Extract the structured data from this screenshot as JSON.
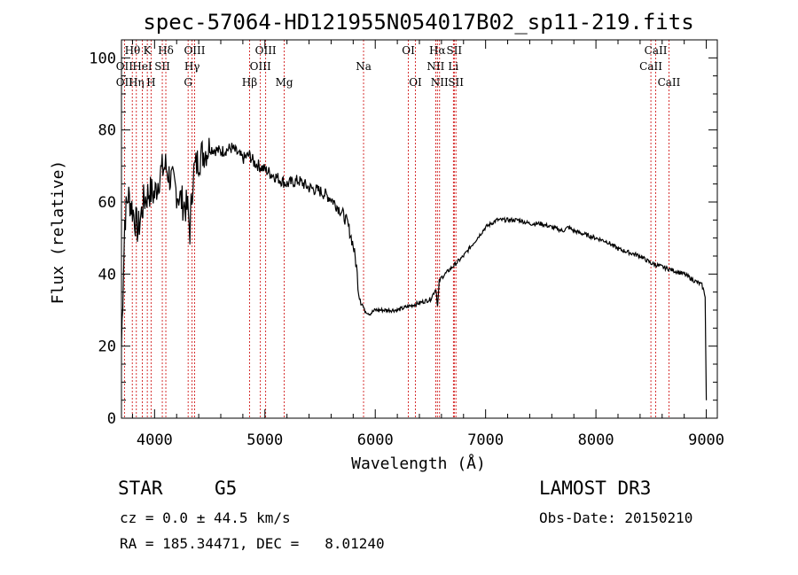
{
  "chart_data": {
    "type": "line",
    "title": "spec-57064-HD121955N054017B02_sp11-219.fits",
    "xlabel": "Wavelength (Å)",
    "ylabel": "Flux (relative)",
    "xlim": [
      3700,
      9100
    ],
    "ylim": [
      0,
      105
    ],
    "xticks": [
      4000,
      5000,
      6000,
      7000,
      8000,
      9000
    ],
    "xtick_labels": [
      "4000",
      "5000",
      "6000",
      "7000",
      "8000",
      "9000"
    ],
    "yticks": [
      0,
      20,
      40,
      60,
      80,
      100
    ],
    "ytick_labels": [
      "0",
      "20",
      "40",
      "60",
      "80",
      "100"
    ],
    "series": [
      {
        "name": "flux",
        "x": [
          3700,
          3730,
          3760,
          3800,
          3850,
          3900,
          3950,
          4000,
          4050,
          4100,
          4150,
          4200,
          4250,
          4300,
          4320,
          4350,
          4400,
          4450,
          4500,
          4600,
          4700,
          4800,
          4860,
          4900,
          5000,
          5100,
          5200,
          5300,
          5400,
          5500,
          5600,
          5700,
          5750,
          5800,
          5830,
          5850,
          5870,
          5890,
          5900,
          5950,
          6000,
          6100,
          6200,
          6300,
          6400,
          6500,
          6550,
          6565,
          6580,
          6600,
          6700,
          6800,
          6900,
          7000,
          7100,
          7200,
          7300,
          7400,
          7500,
          7600,
          7700,
          7750,
          7800,
          7900,
          8000,
          8100,
          8200,
          8300,
          8400,
          8500,
          8600,
          8700,
          8800,
          8900,
          8960,
          8990,
          9000
        ],
        "values": [
          20,
          55,
          62,
          58,
          52,
          60,
          63,
          62,
          68,
          70,
          66,
          63,
          60,
          58,
          52,
          68,
          72,
          74,
          75,
          74,
          75,
          72,
          73,
          71,
          69,
          67,
          65,
          66,
          64,
          63,
          61,
          57,
          54,
          48,
          42,
          35,
          33,
          31,
          30,
          29,
          30,
          30,
          30,
          31,
          32,
          33,
          36,
          31,
          38,
          39,
          42,
          45,
          49,
          53,
          55,
          55,
          55,
          54,
          54,
          53,
          52,
          53,
          52,
          51,
          50,
          49,
          47,
          46,
          45,
          43,
          42,
          41,
          40,
          38,
          37,
          34,
          5
        ]
      }
    ],
    "lines": [
      {
        "name": "OII",
        "x": 3727
      },
      {
        "name": "Hθ",
        "x": 3798
      },
      {
        "name": "Hη",
        "x": 3835
      },
      {
        "name": "HeI",
        "x": 3889
      },
      {
        "name": "K",
        "x": 3934
      },
      {
        "name": "H",
        "x": 3968
      },
      {
        "name": "Hδ",
        "x": 4102
      },
      {
        "name": "SII",
        "x": 4070
      },
      {
        "name": "G",
        "x": 4304
      },
      {
        "name": "Hγ",
        "x": 4340
      },
      {
        "name": "OIII",
        "x": 4363
      },
      {
        "name": "Hβ",
        "x": 4861
      },
      {
        "name": "OIII",
        "x": 4959
      },
      {
        "name": "OIII",
        "x": 5007
      },
      {
        "name": "Mg",
        "x": 5175
      },
      {
        "name": "Na",
        "x": 5894
      },
      {
        "name": "OI",
        "x": 6300
      },
      {
        "name": "OI",
        "x": 6364
      },
      {
        "name": "NII",
        "x": 6548
      },
      {
        "name": "Hα",
        "x": 6563
      },
      {
        "name": "NII",
        "x": 6583
      },
      {
        "name": "Li",
        "x": 6708
      },
      {
        "name": "SII",
        "x": 6716
      },
      {
        "name": "SII",
        "x": 6731
      },
      {
        "name": "CaII",
        "x": 8498
      },
      {
        "name": "CaII",
        "x": 8542
      },
      {
        "name": "CaII",
        "x": 8662
      }
    ],
    "line_label_rows": [
      {
        "text": "Hθ",
        "x": 3800,
        "row": 0
      },
      {
        "text": "K",
        "x": 3934,
        "row": 0
      },
      {
        "text": "Hδ",
        "x": 4102,
        "row": 0
      },
      {
        "text": "OIII",
        "x": 4363,
        "row": 0
      },
      {
        "text": "OIII",
        "x": 5007,
        "row": 0
      },
      {
        "text": "OI",
        "x": 6300,
        "row": 0
      },
      {
        "text": "Hα",
        "x": 6563,
        "row": 0
      },
      {
        "text": "SII",
        "x": 6716,
        "row": 0
      },
      {
        "text": "CaII",
        "x": 8542,
        "row": 0
      },
      {
        "text": "OII",
        "x": 3727,
        "row": 1
      },
      {
        "text": "HeI",
        "x": 3889,
        "row": 1
      },
      {
        "text": "SII",
        "x": 4070,
        "row": 1
      },
      {
        "text": "Hγ",
        "x": 4340,
        "row": 1
      },
      {
        "text": "OIII",
        "x": 4959,
        "row": 1
      },
      {
        "text": "Na",
        "x": 5894,
        "row": 1
      },
      {
        "text": "NII",
        "x": 6548,
        "row": 1
      },
      {
        "text": "Li",
        "x": 6708,
        "row": 1
      },
      {
        "text": "CaII",
        "x": 8498,
        "row": 1
      },
      {
        "text": "OII",
        "x": 3727,
        "row": 2
      },
      {
        "text": "Hη",
        "x": 3835,
        "row": 2
      },
      {
        "text": "H",
        "x": 3968,
        "row": 2
      },
      {
        "text": "G",
        "x": 4304,
        "row": 2
      },
      {
        "text": "Hβ",
        "x": 4861,
        "row": 2
      },
      {
        "text": "Mg",
        "x": 5175,
        "row": 2
      },
      {
        "text": "OI",
        "x": 6364,
        "row": 2
      },
      {
        "text": "NII",
        "x": 6583,
        "row": 2
      },
      {
        "text": "SII",
        "x": 6731,
        "row": 2
      },
      {
        "text": "CaII",
        "x": 8662,
        "row": 2
      }
    ],
    "colors": {
      "flux": "#000000",
      "lines": "#cc0000"
    }
  },
  "footer": {
    "object_class": "STAR",
    "subclass": "G5",
    "survey": "LAMOST DR3",
    "cz": "cz = 0.0 ± 44.5 km/s",
    "obs_date": "Obs-Date: 20150210",
    "coords": "RA = 185.34471, DEC =   8.01240"
  }
}
